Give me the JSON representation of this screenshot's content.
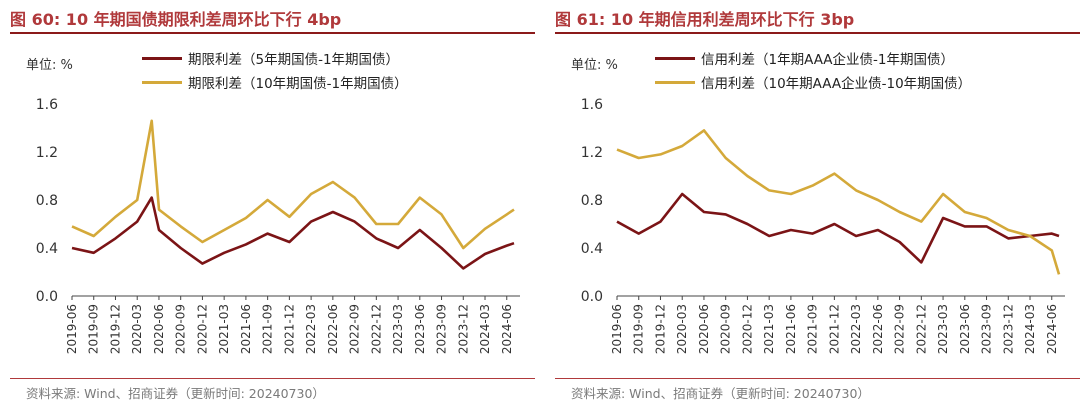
{
  "chart_data": [
    {
      "type": "line",
      "title": "图 60: 10 年期国债期限利差周环比下行 4bp",
      "unit": "单位: %",
      "source": "资料来源: Wind、招商证券（更新时间: 20240730）",
      "ylim": [
        0,
        1.6
      ],
      "yticks": [
        "0.0",
        "0.4",
        "0.8",
        "1.2",
        "1.6"
      ],
      "x_ticks": [
        "2019-06",
        "2019-09",
        "2019-12",
        "2020-03",
        "2020-06",
        "2020-09",
        "2020-12",
        "2021-03",
        "2021-06",
        "2021-09",
        "2021-12",
        "2022-03",
        "2022-06",
        "2022-09",
        "2022-12",
        "2023-03",
        "2023-06",
        "2023-09",
        "2023-12",
        "2024-03",
        "2024-06"
      ],
      "x": [
        "2019-06",
        "2019-09",
        "2019-12",
        "2020-03",
        "2020-05",
        "2020-06",
        "2020-09",
        "2020-12",
        "2021-03",
        "2021-06",
        "2021-09",
        "2021-12",
        "2022-03",
        "2022-06",
        "2022-09",
        "2022-12",
        "2023-03",
        "2023-06",
        "2023-09",
        "2023-12",
        "2024-03",
        "2024-06",
        "2024-07"
      ],
      "series": [
        {
          "name": "期限利差（5年期国债-1年期国债）",
          "color": "#7b1416",
          "values": [
            0.4,
            0.36,
            0.48,
            0.62,
            0.82,
            0.55,
            0.4,
            0.27,
            0.36,
            0.43,
            0.52,
            0.45,
            0.62,
            0.7,
            0.62,
            0.48,
            0.4,
            0.55,
            0.4,
            0.23,
            0.35,
            0.42,
            0.44
          ]
        },
        {
          "name": "期限利差（10年期国债-1年期国债）",
          "color": "#d4a93a",
          "values": [
            0.58,
            0.5,
            0.66,
            0.8,
            1.46,
            0.72,
            0.58,
            0.45,
            0.55,
            0.65,
            0.8,
            0.66,
            0.85,
            0.95,
            0.82,
            0.6,
            0.6,
            0.82,
            0.68,
            0.4,
            0.56,
            0.68,
            0.72
          ]
        }
      ],
      "grid": false,
      "legend_position": "top-center"
    },
    {
      "type": "line",
      "title": "图 61: 10 年期信用利差周环比下行 3bp",
      "unit": "单位: %",
      "source": "资料来源: Wind、招商证券（更新时间: 20240730）",
      "ylim": [
        0,
        1.6
      ],
      "yticks": [
        "0.0",
        "0.4",
        "0.8",
        "1.2",
        "1.6"
      ],
      "x_ticks": [
        "2019-06",
        "2019-09",
        "2019-12",
        "2020-03",
        "2020-06",
        "2020-09",
        "2020-12",
        "2021-03",
        "2021-06",
        "2021-09",
        "2021-12",
        "2022-03",
        "2022-06",
        "2022-09",
        "2022-12",
        "2023-03",
        "2023-06",
        "2023-09",
        "2023-12",
        "2024-03",
        "2024-06"
      ],
      "x": [
        "2019-06",
        "2019-09",
        "2019-12",
        "2020-03",
        "2020-06",
        "2020-09",
        "2020-12",
        "2021-03",
        "2021-06",
        "2021-09",
        "2021-12",
        "2022-03",
        "2022-06",
        "2022-09",
        "2022-12",
        "2023-03",
        "2023-06",
        "2023-09",
        "2023-12",
        "2024-03",
        "2024-06",
        "2024-07"
      ],
      "series": [
        {
          "name": "信用利差（1年期AAA企业债-1年期国债）",
          "color": "#7b1416",
          "values": [
            0.62,
            0.52,
            0.62,
            0.85,
            0.7,
            0.68,
            0.6,
            0.5,
            0.55,
            0.52,
            0.6,
            0.5,
            0.55,
            0.45,
            0.28,
            0.65,
            0.58,
            0.58,
            0.48,
            0.5,
            0.52,
            0.5
          ]
        },
        {
          "name": "信用利差（10年期AAA企业债-10年期国债）",
          "color": "#d4a93a",
          "values": [
            1.22,
            1.15,
            1.18,
            1.25,
            1.38,
            1.15,
            1.0,
            0.88,
            0.85,
            0.92,
            1.02,
            0.88,
            0.8,
            0.7,
            0.62,
            0.85,
            0.7,
            0.65,
            0.55,
            0.5,
            0.38,
            0.18
          ]
        }
      ],
      "grid": false,
      "legend_position": "top-right"
    }
  ]
}
